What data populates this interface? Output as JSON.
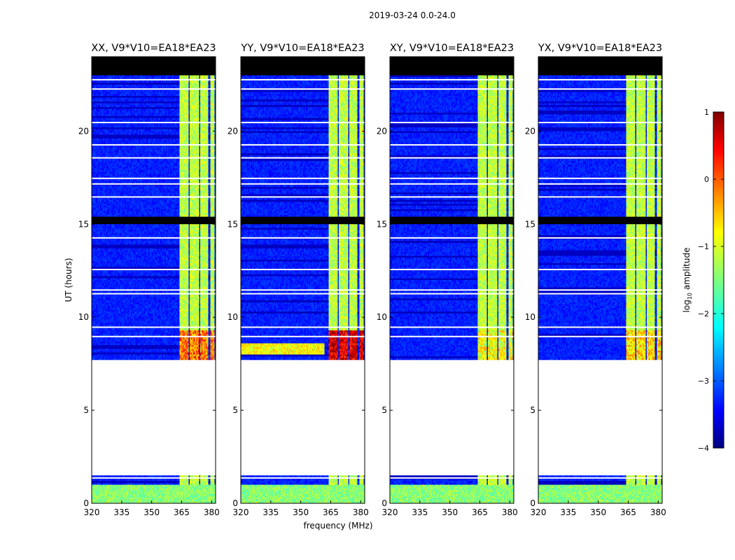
{
  "chart_data": {
    "type": "heatmap",
    "suptitle": "2019-03-24 0.0-24.0",
    "xlabel": "frequency (MHz)",
    "ylabel": "UT (hours)",
    "xlim": [
      320,
      382
    ],
    "ylim": [
      0,
      24
    ],
    "xticks": [
      320,
      335,
      350,
      365,
      380
    ],
    "yticks": [
      0,
      5,
      10,
      15,
      20
    ],
    "colorbar": {
      "label": "log10 amplitude",
      "range": [
        -4,
        1
      ],
      "ticks": [
        -4,
        -3,
        -2,
        -1,
        0,
        1
      ],
      "cmap": "jet"
    },
    "bright_channels_mhz": [
      [
        364.0,
        368.5
      ],
      [
        369.2,
        373.5
      ],
      [
        374.2,
        378.5
      ],
      [
        379.2,
        381.5
      ]
    ],
    "masked_time_ranges_h": [
      [
        23.0,
        24.0
      ],
      [
        15.0,
        15.4
      ],
      [
        1.5,
        7.7
      ]
    ],
    "panels": [
      {
        "title": "XX, V9*V10=EA18*EA23",
        "flare_level": 0.65
      },
      {
        "title": "YY, V9*V10=EA18*EA23",
        "flare_level": 0.8
      },
      {
        "title": "XY, V9*V10=EA18*EA23",
        "flare_level": 0.5
      },
      {
        "title": "YX, V9*V10=EA18*EA23",
        "flare_level": 0.55
      }
    ]
  }
}
